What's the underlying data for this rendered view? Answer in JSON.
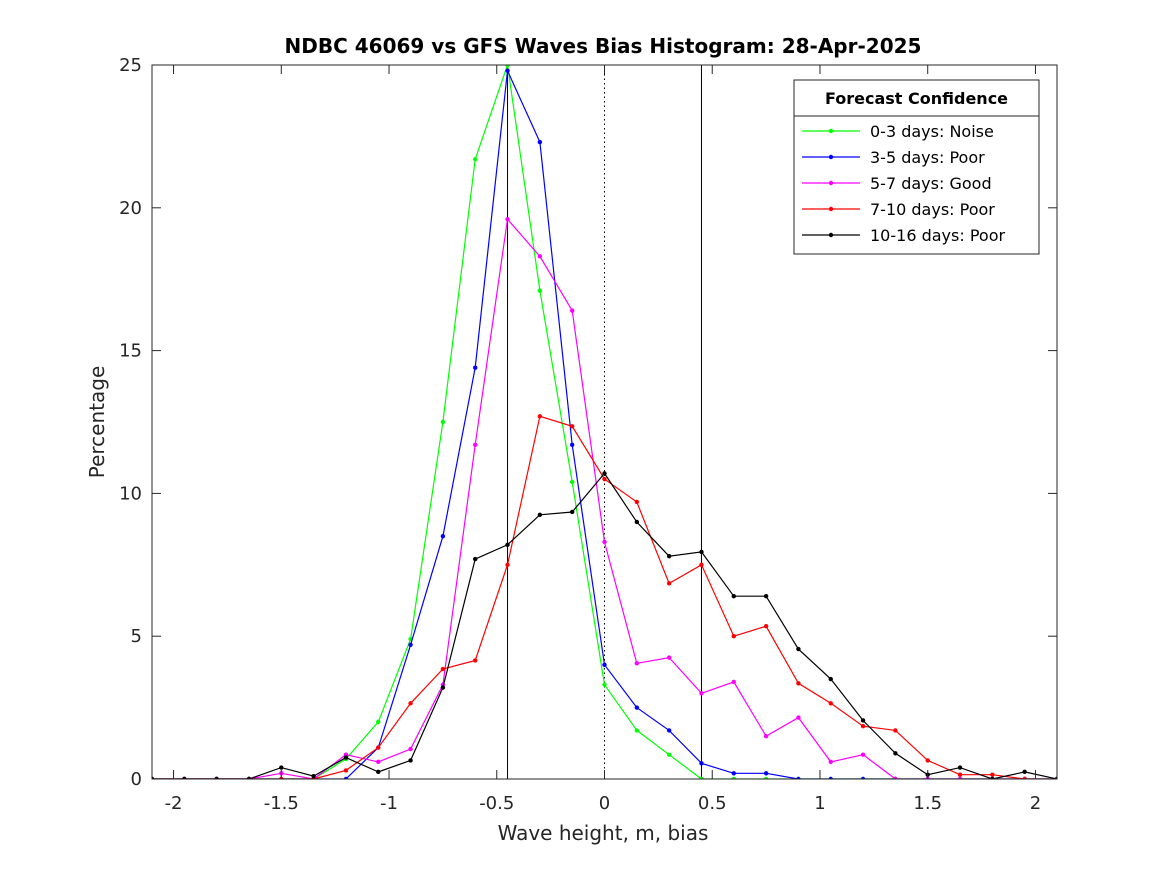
{
  "chart_data": {
    "type": "line",
    "title": "NDBC 46069 vs GFS Waves Bias Histogram: 28-Apr-2025",
    "xlabel": "Wave height, m, bias",
    "ylabel": "Percentage",
    "xlim": [
      -2.1,
      2.1
    ],
    "ylim": [
      0,
      25
    ],
    "xticks": [
      -2,
      -1.5,
      -1,
      -0.5,
      0,
      0.5,
      1,
      1.5,
      2
    ],
    "xtick_labels": [
      "-2",
      "-1.5",
      "-1",
      "-0.5",
      "0",
      "0.5",
      "1",
      "1.5",
      "2"
    ],
    "yticks": [
      0,
      5,
      10,
      15,
      20,
      25
    ],
    "ytick_labels": [
      "0",
      "5",
      "10",
      "15",
      "20",
      "25"
    ],
    "grid": false,
    "legend_title": "Forecast Confidence",
    "legend_position": "top-right",
    "reference_lines": [
      {
        "x": -0.45,
        "style": "solid"
      },
      {
        "x": 0,
        "style": "dotted"
      },
      {
        "x": 0.45,
        "style": "solid"
      }
    ],
    "x": [
      -2.1,
      -1.95,
      -1.8,
      -1.65,
      -1.5,
      -1.35,
      -1.2,
      -1.05,
      -0.9,
      -0.75,
      -0.6,
      -0.45,
      -0.3,
      -0.15,
      0,
      0.15,
      0.3,
      0.45,
      0.6,
      0.75,
      0.9,
      1.05,
      1.2,
      1.35,
      1.5,
      1.65,
      1.8,
      1.95,
      2.1
    ],
    "series": [
      {
        "name": "0-3 days: Noise",
        "color": "#00ff00",
        "values": [
          0,
          0,
          0,
          0,
          0,
          0,
          0.7,
          2.0,
          4.9,
          12.5,
          21.7,
          25.0,
          17.1,
          10.4,
          3.3,
          1.7,
          0.85,
          0,
          0,
          0,
          0,
          0,
          0,
          0,
          0,
          0,
          0,
          0,
          0
        ]
      },
      {
        "name": "3-5 days: Poor",
        "color": "#0000ff",
        "values": [
          0,
          0,
          0,
          0,
          0,
          0,
          0,
          1.1,
          4.7,
          8.5,
          14.4,
          24.8,
          22.3,
          11.7,
          4.0,
          2.5,
          1.7,
          0.55,
          0.2,
          0.2,
          0,
          0,
          0,
          0,
          0,
          0,
          0,
          0,
          0
        ]
      },
      {
        "name": "5-7 days: Good",
        "color": "#ff00ff",
        "values": [
          0,
          0,
          0,
          0,
          0.2,
          0,
          0.85,
          0.6,
          1.05,
          3.3,
          11.7,
          19.6,
          18.3,
          16.4,
          8.3,
          4.05,
          4.25,
          3.0,
          3.4,
          1.5,
          2.15,
          0.6,
          0.85,
          0,
          0,
          0,
          0,
          0,
          0
        ]
      },
      {
        "name": "7-10 days: Poor",
        "color": "#ff0000",
        "values": [
          0,
          0,
          0,
          0,
          0,
          0,
          0.3,
          1.1,
          2.65,
          3.85,
          4.15,
          7.5,
          12.7,
          12.35,
          10.5,
          9.7,
          6.85,
          7.5,
          5.0,
          5.35,
          3.35,
          2.65,
          1.85,
          1.7,
          0.65,
          0.15,
          0.15,
          0,
          0
        ]
      },
      {
        "name": "10-16 days: Poor",
        "color": "#000000",
        "values": [
          0,
          0,
          0,
          0,
          0.4,
          0.1,
          0.75,
          0.25,
          0.65,
          3.2,
          7.7,
          8.2,
          9.25,
          9.35,
          10.7,
          9.0,
          7.8,
          7.95,
          6.4,
          6.4,
          4.55,
          3.5,
          2.05,
          0.9,
          0.15,
          0.4,
          0,
          0.25,
          0
        ]
      }
    ]
  }
}
